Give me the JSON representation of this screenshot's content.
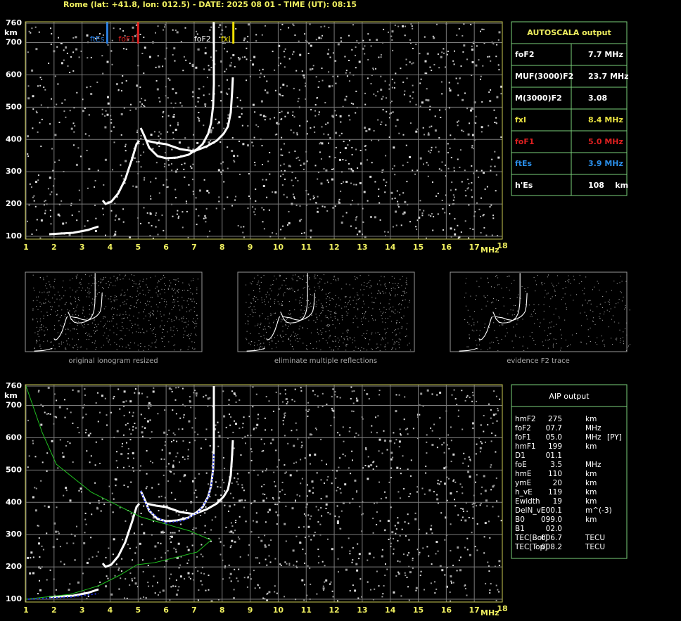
{
  "header": {
    "title": "Rome (lat: +41.8, lon: 012.5) - DATE: 2025 08 01 - TIME (UT): 08:15"
  },
  "axes": {
    "xlim": [
      1,
      18
    ],
    "ylim": [
      100,
      760
    ],
    "xticks": [
      1,
      2,
      3,
      4,
      5,
      6,
      7,
      8,
      9,
      10,
      11,
      12,
      13,
      14,
      15,
      16,
      17,
      18
    ],
    "yticks": [
      100,
      200,
      300,
      400,
      500,
      600,
      700,
      760
    ],
    "x_unit": "MHz",
    "y_unit": "km"
  },
  "markers": [
    {
      "label": "ftEs",
      "freq": 3.9,
      "color": "#2a7fe0"
    },
    {
      "label": "foF1",
      "freq": 5.0,
      "color": "#e02020"
    },
    {
      "label": "foF2",
      "freq": 7.7,
      "color": "#ffffff"
    },
    {
      "label": "fxI",
      "freq": 8.4,
      "color": "#f0e000"
    }
  ],
  "autoscala": {
    "title": "AUTOSCALA output",
    "rows": [
      {
        "label": "foF2",
        "value": "7.7 MHz",
        "color": "#ffffff"
      },
      {
        "label": "MUF(3000)F2",
        "value": "23.7 MHz",
        "color": "#ffffff"
      },
      {
        "label": "M(3000)F2",
        "value": "3.08",
        "color": "#ffffff"
      },
      {
        "label": "fxI",
        "value": "8.4 MHz",
        "color": "#e8e040"
      },
      {
        "label": "foF1",
        "value": "5.0 MHz",
        "color": "#e02020"
      },
      {
        "label": "ftEs",
        "value": "3.9 MHz",
        "color": "#2a8ee8"
      },
      {
        "label": "h'Es",
        "value": "108    km",
        "color": "#ffffff"
      }
    ]
  },
  "thumbnails": [
    {
      "caption": "original ionogram resized"
    },
    {
      "caption": "eliminate multiple reflections"
    },
    {
      "caption": "evidence F2 trace"
    }
  ],
  "aip": {
    "title": "AIP output",
    "rows": [
      [
        "hmF2",
        "275",
        "km"
      ],
      [
        "foF2",
        "07.7",
        "MHz"
      ],
      [
        "foF1",
        "05.0",
        "MHz",
        "[PY]"
      ],
      [
        "hmF1",
        "199",
        "km"
      ],
      [
        "D1",
        "01.1"
      ],
      [
        "foE",
        "3.5",
        "MHz"
      ],
      [
        "hmE",
        "110",
        "km"
      ],
      [
        "ymE",
        "20",
        "km"
      ],
      [
        "h_vE",
        "119",
        "km"
      ],
      [
        "Ewidth",
        "19",
        "km"
      ],
      [
        "DelN_vE",
        "00.1",
        "m^(-3)"
      ],
      [
        "B0",
        "099.0",
        "km"
      ],
      [
        "B1",
        "02.0"
      ],
      [
        "TEC[Bot]",
        "006.7",
        "TECU"
      ],
      [
        "TEC[Top]",
        "008.2",
        "TECU"
      ]
    ]
  }
}
